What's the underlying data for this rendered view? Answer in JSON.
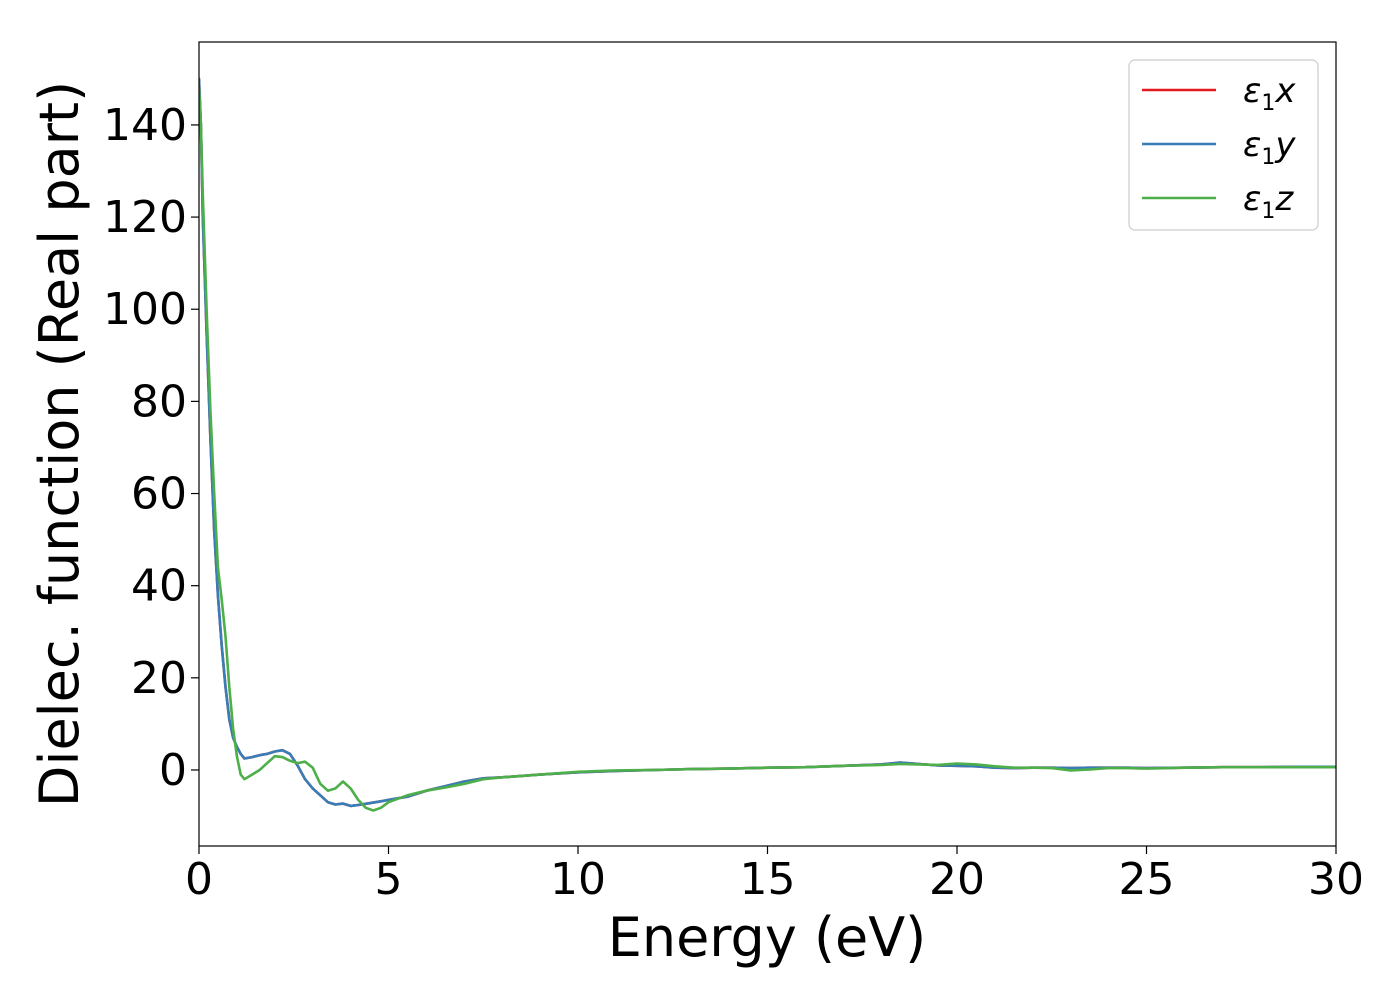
{
  "chart_data": {
    "type": "line",
    "xlabel": "Energy (eV)",
    "ylabel": "Dielec. function (Real part)",
    "xlim": [
      0,
      30
    ],
    "ylim": [
      -16.5,
      158
    ],
    "xticks": [
      0,
      5,
      10,
      15,
      20,
      25,
      30
    ],
    "yticks": [
      0,
      20,
      40,
      60,
      80,
      100,
      120,
      140
    ],
    "grid": false,
    "legend_position": "top-right",
    "series": [
      {
        "name": "ε₁x",
        "legend_base": "ε",
        "legend_sub": "1",
        "legend_var": "x",
        "color": "#e41a1c",
        "x": [
          0.0,
          0.05,
          0.1,
          0.2,
          0.3,
          0.4,
          0.5,
          0.6,
          0.7,
          0.8,
          0.9,
          1.0,
          1.1,
          1.2,
          1.4,
          1.6,
          1.8,
          2.0,
          2.2,
          2.4,
          2.6,
          2.8,
          3.0,
          3.2,
          3.4,
          3.6,
          3.8,
          4.0,
          4.2,
          4.5,
          4.8,
          5.0,
          5.5,
          6.0,
          6.5,
          7.0,
          7.5,
          8.0,
          9.0,
          10.0,
          11.0,
          12.0,
          13.0,
          14.0,
          15.0,
          16.0,
          17.0,
          18.0,
          18.5,
          19.0,
          19.5,
          20.0,
          20.5,
          21.0,
          21.5,
          22.0,
          22.5,
          23.0,
          23.5,
          24.0,
          24.5,
          25.0,
          26.0,
          27.0,
          28.0,
          29.0,
          30.0
        ],
        "values": [
          150,
          140,
          120,
          95,
          72,
          52,
          38,
          27,
          18,
          11,
          7,
          5,
          3.5,
          2.5,
          2.8,
          3.2,
          3.5,
          4.0,
          4.3,
          3.5,
          1.0,
          -2.0,
          -4.0,
          -5.5,
          -7.0,
          -7.5,
          -7.3,
          -7.8,
          -7.6,
          -7.2,
          -6.8,
          -6.5,
          -5.8,
          -4.5,
          -3.5,
          -2.5,
          -1.8,
          -1.6,
          -1.0,
          -0.5,
          -0.2,
          0.0,
          0.2,
          0.3,
          0.5,
          0.6,
          0.9,
          1.2,
          1.6,
          1.3,
          1.0,
          0.9,
          0.8,
          0.5,
          0.4,
          0.5,
          0.5,
          0.4,
          0.5,
          0.5,
          0.5,
          0.4,
          0.5,
          0.6,
          0.6,
          0.7,
          0.7
        ]
      },
      {
        "name": "ε₁y",
        "legend_base": "ε",
        "legend_sub": "1",
        "legend_var": "y",
        "color": "#377eb8",
        "x": [
          0.0,
          0.05,
          0.1,
          0.2,
          0.3,
          0.4,
          0.5,
          0.6,
          0.7,
          0.8,
          0.9,
          1.0,
          1.1,
          1.2,
          1.4,
          1.6,
          1.8,
          2.0,
          2.2,
          2.4,
          2.6,
          2.8,
          3.0,
          3.2,
          3.4,
          3.6,
          3.8,
          4.0,
          4.2,
          4.5,
          4.8,
          5.0,
          5.5,
          6.0,
          6.5,
          7.0,
          7.5,
          8.0,
          9.0,
          10.0,
          11.0,
          12.0,
          13.0,
          14.0,
          15.0,
          16.0,
          17.0,
          18.0,
          18.5,
          19.0,
          19.5,
          20.0,
          20.5,
          21.0,
          21.5,
          22.0,
          22.5,
          23.0,
          23.5,
          24.0,
          24.5,
          25.0,
          26.0,
          27.0,
          28.0,
          29.0,
          30.0
        ],
        "values": [
          150,
          140,
          120,
          95,
          72,
          52,
          38,
          27,
          18,
          11,
          7,
          5,
          3.5,
          2.5,
          2.8,
          3.2,
          3.5,
          4.0,
          4.3,
          3.5,
          1.0,
          -2.0,
          -4.0,
          -5.5,
          -7.0,
          -7.5,
          -7.3,
          -7.8,
          -7.6,
          -7.2,
          -6.8,
          -6.5,
          -5.8,
          -4.5,
          -3.5,
          -2.5,
          -1.8,
          -1.6,
          -1.0,
          -0.5,
          -0.2,
          0.0,
          0.2,
          0.3,
          0.5,
          0.6,
          0.9,
          1.2,
          1.6,
          1.3,
          1.0,
          0.9,
          0.8,
          0.5,
          0.4,
          0.5,
          0.5,
          0.4,
          0.5,
          0.5,
          0.5,
          0.4,
          0.5,
          0.6,
          0.6,
          0.7,
          0.7
        ]
      },
      {
        "name": "ε₁z",
        "legend_base": "ε",
        "legend_sub": "1",
        "legend_var": "z",
        "color": "#4daf4a",
        "x": [
          0.0,
          0.05,
          0.1,
          0.2,
          0.3,
          0.4,
          0.5,
          0.6,
          0.7,
          0.8,
          0.9,
          1.0,
          1.1,
          1.2,
          1.4,
          1.6,
          1.8,
          2.0,
          2.2,
          2.4,
          2.6,
          2.8,
          3.0,
          3.2,
          3.4,
          3.6,
          3.8,
          4.0,
          4.2,
          4.4,
          4.6,
          4.8,
          5.0,
          5.5,
          6.0,
          6.5,
          7.0,
          7.5,
          8.0,
          9.0,
          10.0,
          11.0,
          12.0,
          13.0,
          14.0,
          15.0,
          16.0,
          17.0,
          18.0,
          18.5,
          19.0,
          19.5,
          20.0,
          20.5,
          21.0,
          21.5,
          22.0,
          22.5,
          23.0,
          23.5,
          24.0,
          24.5,
          25.0,
          26.0,
          27.0,
          28.0,
          29.0,
          30.0
        ],
        "values": [
          148,
          140,
          125,
          100,
          78,
          60,
          44,
          37,
          29,
          18,
          9,
          3,
          -1,
          -2,
          -1,
          0,
          1.5,
          3.0,
          2.8,
          2.0,
          1.5,
          1.8,
          0.5,
          -3.0,
          -4.5,
          -4.0,
          -2.5,
          -4.0,
          -6.5,
          -8.2,
          -8.8,
          -8.2,
          -7.0,
          -5.5,
          -4.5,
          -3.8,
          -3.0,
          -2.0,
          -1.6,
          -1.0,
          -0.4,
          -0.1,
          0.0,
          0.2,
          0.3,
          0.5,
          0.6,
          0.9,
          1.1,
          1.3,
          1.2,
          1.1,
          1.4,
          1.2,
          0.8,
          0.5,
          0.5,
          0.4,
          -0.1,
          0.1,
          0.4,
          0.4,
          0.3,
          0.5,
          0.6,
          0.6,
          0.6,
          0.6
        ]
      }
    ]
  }
}
